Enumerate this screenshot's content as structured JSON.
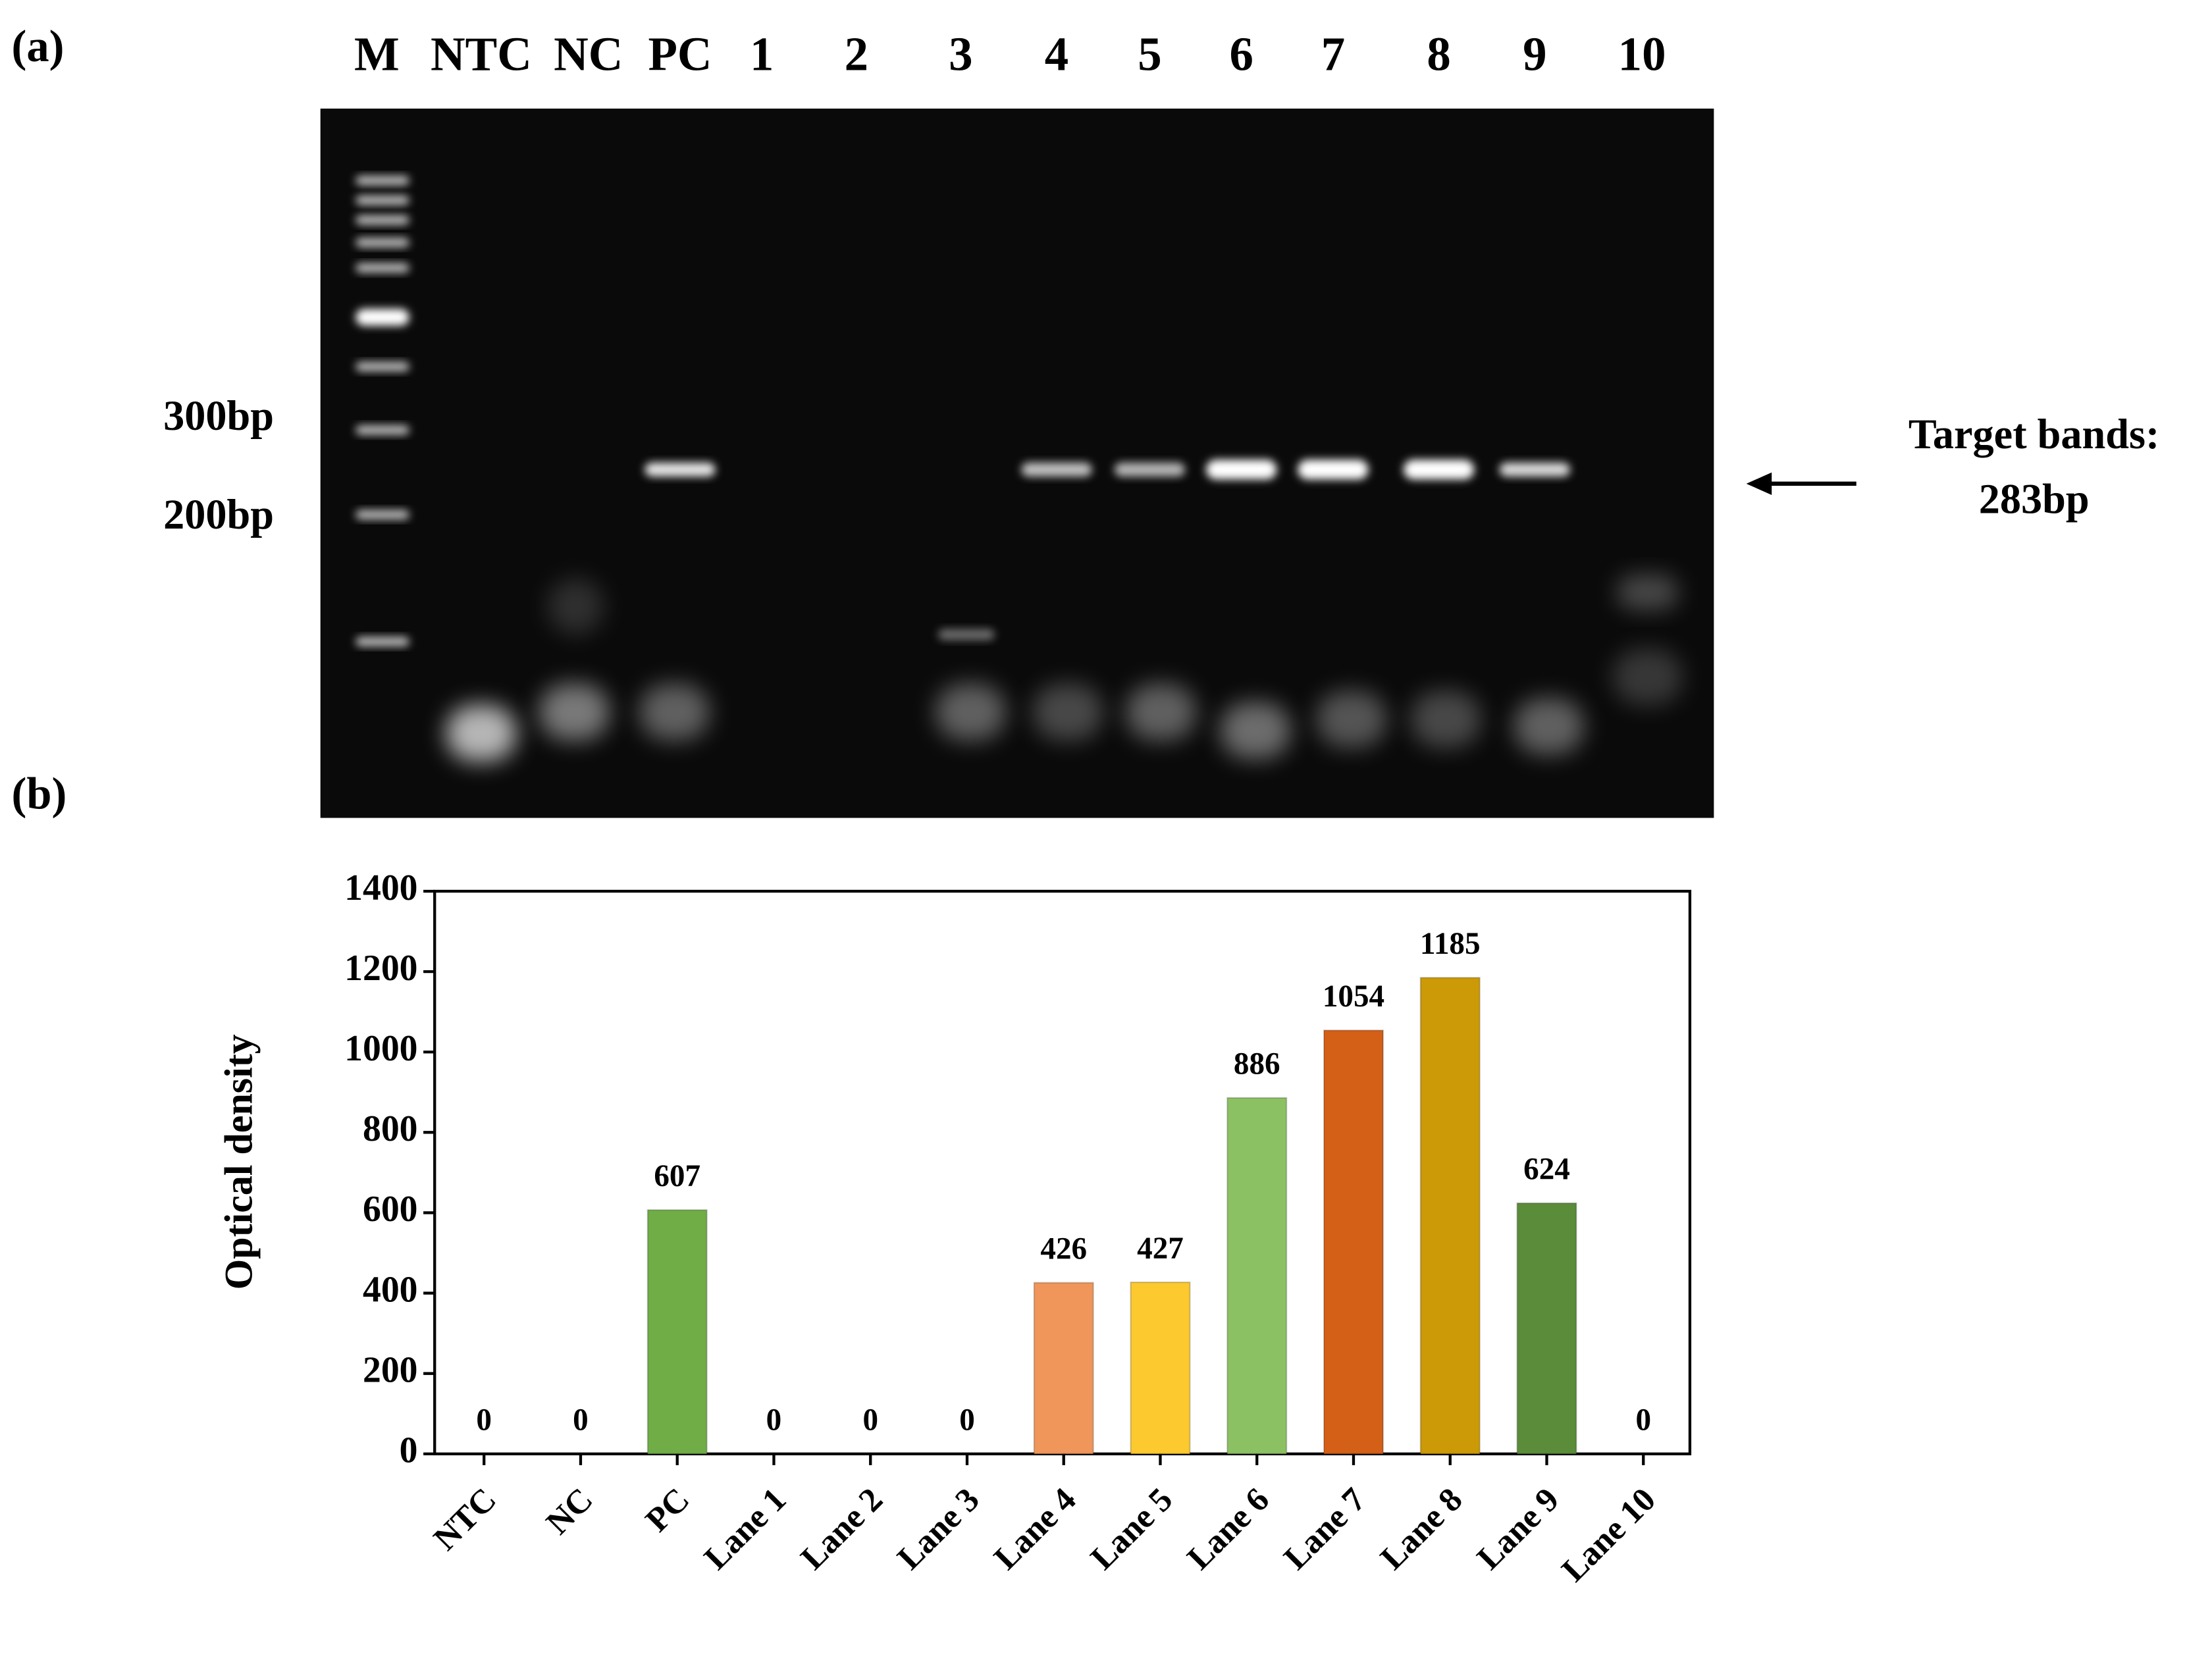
{
  "gel": {
    "panel_label": "(a)",
    "lanes": [
      "M",
      "NTC",
      "NC",
      "PC",
      "1",
      "2",
      "3",
      "4",
      "5",
      "6",
      "7",
      "8",
      "9",
      "10"
    ],
    "markers": [
      "300bp",
      "200bp"
    ],
    "annotation": [
      "Target bands:",
      "283bp"
    ]
  },
  "chart_data": {
    "type": "bar",
    "panel_label": "(b)",
    "y_label": "Optical density",
    "categories": [
      "NTC",
      "NC",
      "PC",
      "Lane 1",
      "Lane 2",
      "Lane 3",
      "Lane 4",
      "Lane 5",
      "Lane 6",
      "Lane 7",
      "Lane 8",
      "Lane 9",
      "Lane 10"
    ],
    "values": [
      0,
      0,
      607,
      0,
      0,
      0,
      426,
      427,
      886,
      1054,
      1185,
      624,
      0
    ],
    "colors": [
      null,
      null,
      "#70ad47",
      null,
      null,
      null,
      "#f0965a",
      "#fcc92f",
      "#8cc163",
      "#d45f17",
      "#cc9a06",
      "#5a8c3a",
      null
    ],
    "ylim": [
      0,
      1400
    ],
    "yticks": [
      0,
      200,
      400,
      600,
      800,
      1000,
      1200,
      1400
    ]
  }
}
